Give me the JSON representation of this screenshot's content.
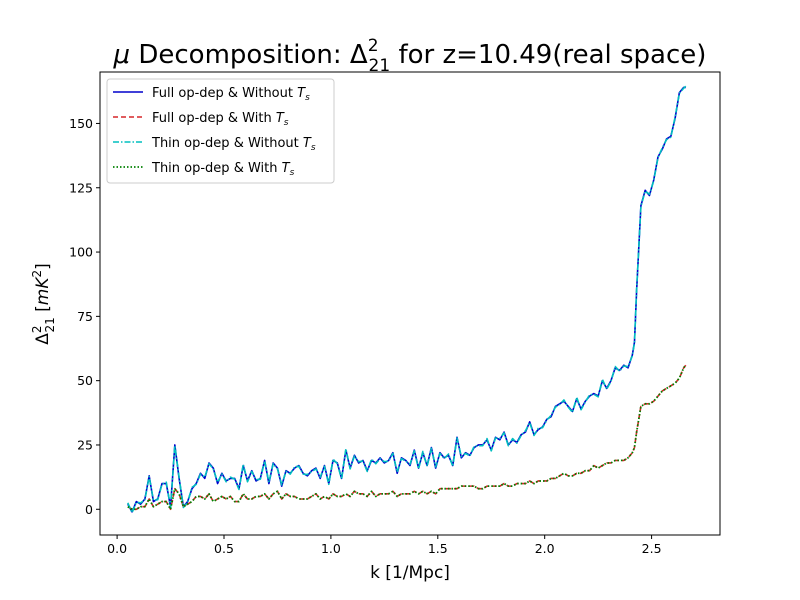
{
  "chart_data": {
    "type": "line",
    "title": {
      "greek": "μ",
      "text": " Decomposition: ",
      "delta": "Δ",
      "sup": "2",
      "sub": "21",
      "rest": " for z=10.49(real space)"
    },
    "xlabel": "k [1/Mpc]",
    "ylabel": {
      "delta": "Δ",
      "sup": "2",
      "sub": "21",
      "open": " [",
      "unit": "mK",
      "unit_sup": "2",
      "close": "]"
    },
    "xlim": [
      -0.08,
      2.82
    ],
    "ylim": [
      -10,
      170
    ],
    "xticks": [
      0,
      0.5,
      1.0,
      1.5,
      2.0,
      2.5
    ],
    "xtick_labels": [
      "0.0",
      "0.5",
      "1.0",
      "1.5",
      "2.0",
      "2.5"
    ],
    "yticks": [
      0,
      25,
      50,
      75,
      100,
      125,
      150
    ],
    "ytick_labels": [
      "0",
      "25",
      "50",
      "75",
      "100",
      "125",
      "150"
    ],
    "grid": false,
    "legend_position": "top-left",
    "x": [
      0.05,
      0.07,
      0.09,
      0.11,
      0.13,
      0.15,
      0.17,
      0.19,
      0.21,
      0.23,
      0.25,
      0.27,
      0.29,
      0.31,
      0.33,
      0.35,
      0.37,
      0.39,
      0.41,
      0.43,
      0.45,
      0.47,
      0.49,
      0.51,
      0.53,
      0.55,
      0.57,
      0.59,
      0.61,
      0.63,
      0.65,
      0.67,
      0.69,
      0.71,
      0.73,
      0.75,
      0.77,
      0.79,
      0.81,
      0.83,
      0.85,
      0.87,
      0.89,
      0.91,
      0.93,
      0.95,
      0.97,
      0.99,
      1.01,
      1.03,
      1.05,
      1.07,
      1.09,
      1.11,
      1.13,
      1.15,
      1.17,
      1.19,
      1.21,
      1.23,
      1.25,
      1.27,
      1.29,
      1.31,
      1.33,
      1.35,
      1.37,
      1.39,
      1.41,
      1.43,
      1.45,
      1.47,
      1.49,
      1.51,
      1.53,
      1.55,
      1.57,
      1.59,
      1.61,
      1.63,
      1.65,
      1.67,
      1.69,
      1.71,
      1.73,
      1.75,
      1.77,
      1.79,
      1.81,
      1.83,
      1.85,
      1.87,
      1.89,
      1.91,
      1.93,
      1.95,
      1.97,
      1.99,
      2.01,
      2.03,
      2.05,
      2.07,
      2.09,
      2.11,
      2.13,
      2.15,
      2.17,
      2.19,
      2.21,
      2.23,
      2.25,
      2.27,
      2.29,
      2.31,
      2.33,
      2.35,
      2.37,
      2.39,
      2.41,
      2.42,
      2.43,
      2.45,
      2.47,
      2.49,
      2.51,
      2.53,
      2.55,
      2.57,
      2.59,
      2.61,
      2.63,
      2.65,
      2.66
    ],
    "series": [
      {
        "name": "Full op-dep & Without T_s",
        "label": {
          "text": "Full op-dep & Without ",
          "sym": "T",
          "sub": "s"
        },
        "color": "#0000cc",
        "dash": "solid",
        "values": [
          2,
          -1,
          3,
          2,
          4,
          13,
          3,
          4,
          10,
          10,
          1,
          25,
          12,
          1,
          3,
          8,
          10,
          14,
          12,
          18,
          16,
          10,
          14,
          11,
          12,
          12,
          8,
          17,
          11,
          15,
          11,
          12,
          19,
          10,
          18,
          16,
          9,
          15,
          14,
          16,
          17,
          14,
          13,
          15,
          16,
          12,
          17,
          10,
          19,
          18,
          12,
          23,
          16,
          21,
          18,
          19,
          15,
          19,
          18,
          20,
          18,
          19,
          22,
          14,
          20,
          19,
          17,
          23,
          16,
          22,
          17,
          24,
          16,
          22,
          20,
          21,
          17,
          28,
          20,
          22,
          21,
          24,
          25,
          25,
          27,
          23,
          28,
          27,
          30,
          25,
          27,
          26,
          29,
          30,
          34,
          29,
          31,
          32,
          35,
          36,
          40,
          41,
          42,
          40,
          38,
          43,
          39,
          42,
          44,
          45,
          44,
          50,
          47,
          50,
          55,
          54,
          56,
          55,
          60,
          65,
          85,
          118,
          124,
          122,
          128,
          137,
          140,
          144,
          145,
          152,
          162,
          164,
          164
        ],
        "alt_name": "Thin op-dep & Without T_s",
        "alt_label": {
          "text": "Thin op-dep & Without ",
          "sym": "T",
          "sub": "s"
        },
        "alt_color": "#00bfbf"
      },
      {
        "name": "Full op-dep & With T_s",
        "label": {
          "text": "Full op-dep & With ",
          "sym": "T",
          "sub": "s"
        },
        "color": "#d62728",
        "dash": "dashed",
        "values": [
          1,
          0,
          0,
          1,
          1,
          4,
          1,
          2,
          3,
          3,
          0,
          8,
          6,
          1,
          2,
          3,
          5,
          5,
          4,
          6,
          3,
          4,
          5,
          4,
          5,
          3,
          3,
          6,
          4,
          4,
          5,
          5,
          6,
          4,
          6,
          7,
          4,
          6,
          5,
          5,
          4,
          4,
          4,
          5,
          6,
          4,
          5,
          4,
          6,
          5,
          5,
          6,
          5,
          7,
          6,
          6,
          5,
          7,
          5,
          6,
          6,
          6,
          7,
          5,
          6,
          6,
          6,
          7,
          6,
          7,
          6,
          7,
          6,
          8,
          8,
          8,
          8,
          8,
          9,
          9,
          9,
          9,
          8,
          8,
          9,
          9,
          9,
          9,
          10,
          9,
          9,
          10,
          10,
          10,
          11,
          10,
          11,
          11,
          11,
          12,
          12,
          13,
          14,
          13,
          13,
          14,
          14,
          15,
          15,
          17,
          16,
          17,
          18,
          18,
          19,
          19,
          19,
          20,
          22,
          24,
          30,
          40,
          41,
          41,
          42,
          44,
          46,
          47,
          48,
          49,
          51,
          55,
          56
        ],
        "alt_name": "Thin op-dep & With T_s",
        "alt_label": {
          "text": "Thin op-dep & With ",
          "sym": "T",
          "sub": "s"
        },
        "alt_color": "#008000"
      }
    ]
  }
}
